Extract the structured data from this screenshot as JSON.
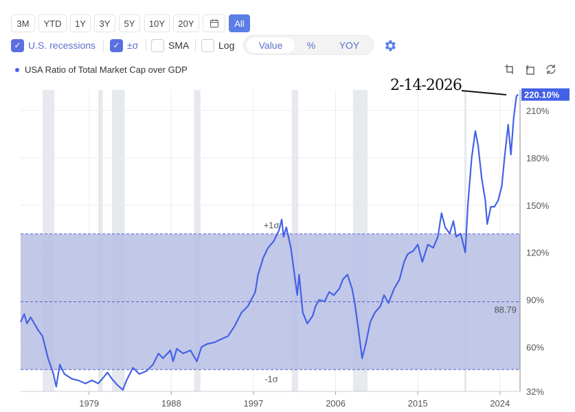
{
  "toolbar": {
    "ranges": [
      "3M",
      "YTD",
      "1Y",
      "3Y",
      "5Y",
      "10Y",
      "20Y"
    ],
    "calendar_icon": "calendar-icon",
    "all_label": "All"
  },
  "options": {
    "recessions": "U.S. recessions",
    "sigma": "±σ",
    "sma": "SMA",
    "log": "Log",
    "modes": [
      "Value",
      "%",
      "YOY"
    ],
    "settings_icon": "gear-icon"
  },
  "legend": {
    "series": "USA Ratio of Total Market Cap over GDP"
  },
  "tools": [
    "crop-icon",
    "undo-icon",
    "refresh-icon"
  ],
  "annotation": "2-14-2026",
  "colors": {
    "line": "#4461e6",
    "band": "#bcc3e6",
    "accent": "#5b7ee5"
  },
  "chart_data": {
    "type": "line",
    "title": "USA Ratio of Total Market Cap over GDP",
    "xlim": [
      1971.5,
      2026.2
    ],
    "ylim": [
      32,
      223
    ],
    "x_ticks": [
      1979,
      1988,
      1997,
      2006,
      2015,
      2024
    ],
    "y_ticks": [
      32,
      60,
      90,
      120,
      150,
      180,
      210
    ],
    "y_tick_labels": [
      "32%",
      "60%",
      "90%",
      "120%",
      "150%",
      "180%",
      "210%"
    ],
    "last_value_label": "220.10%",
    "mean": 88.79,
    "mean_label": "88.79",
    "plus_sigma": 131.8,
    "plus_sigma_label": "+1σ",
    "minus_sigma": 45.8,
    "minus_sigma_label": "-1σ",
    "recessions": [
      [
        1973.9,
        1975.2
      ],
      [
        1980.0,
        1980.5
      ],
      [
        1981.5,
        1982.9
      ],
      [
        1990.5,
        1991.2
      ],
      [
        2001.2,
        2001.9
      ],
      [
        2007.9,
        2009.5
      ],
      [
        2020.1,
        2020.3
      ]
    ],
    "series": [
      {
        "name": "USA Ratio of Total Market Cap over GDP",
        "points": [
          [
            1971.5,
            76
          ],
          [
            1971.9,
            81
          ],
          [
            1972.2,
            75
          ],
          [
            1972.6,
            79
          ],
          [
            1973.4,
            71
          ],
          [
            1973.9,
            67
          ],
          [
            1974.5,
            53
          ],
          [
            1975.1,
            43
          ],
          [
            1975.4,
            35
          ],
          [
            1975.8,
            49
          ],
          [
            1976.3,
            43
          ],
          [
            1977.1,
            40
          ],
          [
            1977.8,
            39
          ],
          [
            1978.6,
            37
          ],
          [
            1979.3,
            39
          ],
          [
            1980.0,
            37
          ],
          [
            1980.6,
            41
          ],
          [
            1981.0,
            44
          ],
          [
            1981.5,
            40
          ],
          [
            1982.1,
            36
          ],
          [
            1982.7,
            33
          ],
          [
            1983.1,
            39
          ],
          [
            1983.8,
            47
          ],
          [
            1984.5,
            43
          ],
          [
            1985.3,
            45
          ],
          [
            1986.0,
            49
          ],
          [
            1986.6,
            56
          ],
          [
            1987.1,
            53
          ],
          [
            1987.9,
            58
          ],
          [
            1988.2,
            51
          ],
          [
            1988.6,
            59
          ],
          [
            1989.3,
            56
          ],
          [
            1990.1,
            58
          ],
          [
            1990.8,
            51
          ],
          [
            1991.3,
            60
          ],
          [
            1991.9,
            62
          ],
          [
            1992.7,
            63
          ],
          [
            1993.4,
            65
          ],
          [
            1994.2,
            67
          ],
          [
            1994.9,
            73
          ],
          [
            1995.7,
            82
          ],
          [
            1996.4,
            86
          ],
          [
            1997.2,
            95
          ],
          [
            1997.5,
            106
          ],
          [
            1998.1,
            117
          ],
          [
            1998.6,
            123
          ],
          [
            1999.2,
            127
          ],
          [
            1999.8,
            134
          ],
          [
            2000.1,
            141
          ],
          [
            2000.3,
            130
          ],
          [
            2000.6,
            136
          ],
          [
            2001.1,
            123
          ],
          [
            2001.4,
            110
          ],
          [
            2001.8,
            93
          ],
          [
            2002.0,
            106
          ],
          [
            2002.4,
            82
          ],
          [
            2002.9,
            75
          ],
          [
            2003.5,
            80
          ],
          [
            2003.8,
            86
          ],
          [
            2004.2,
            90
          ],
          [
            2004.8,
            89
          ],
          [
            2005.3,
            95
          ],
          [
            2005.8,
            93
          ],
          [
            2006.4,
            97
          ],
          [
            2006.8,
            103
          ],
          [
            2007.3,
            106
          ],
          [
            2007.8,
            97
          ],
          [
            2008.1,
            88
          ],
          [
            2008.5,
            71
          ],
          [
            2008.9,
            53
          ],
          [
            2009.3,
            62
          ],
          [
            2009.8,
            76
          ],
          [
            2010.3,
            82
          ],
          [
            2010.9,
            86
          ],
          [
            2011.3,
            93
          ],
          [
            2011.8,
            88
          ],
          [
            2012.4,
            97
          ],
          [
            2013.0,
            103
          ],
          [
            2013.5,
            114
          ],
          [
            2013.9,
            119
          ],
          [
            2014.5,
            121
          ],
          [
            2015.0,
            125
          ],
          [
            2015.5,
            114
          ],
          [
            2016.1,
            125
          ],
          [
            2016.7,
            123
          ],
          [
            2017.2,
            130
          ],
          [
            2017.6,
            145
          ],
          [
            2018.0,
            136
          ],
          [
            2018.5,
            132
          ],
          [
            2018.9,
            140
          ],
          [
            2019.2,
            130
          ],
          [
            2019.7,
            132
          ],
          [
            2020.2,
            120
          ],
          [
            2020.5,
            151
          ],
          [
            2020.9,
            180
          ],
          [
            2021.3,
            197
          ],
          [
            2021.6,
            188
          ],
          [
            2022.0,
            167
          ],
          [
            2022.4,
            153
          ],
          [
            2022.6,
            138
          ],
          [
            2023.0,
            149
          ],
          [
            2023.4,
            149
          ],
          [
            2023.8,
            153
          ],
          [
            2024.2,
            162
          ],
          [
            2024.5,
            180
          ],
          [
            2024.9,
            201
          ],
          [
            2025.2,
            182
          ],
          [
            2025.5,
            205
          ],
          [
            2025.8,
            219
          ],
          [
            2026.0,
            220.1
          ]
        ]
      }
    ]
  }
}
